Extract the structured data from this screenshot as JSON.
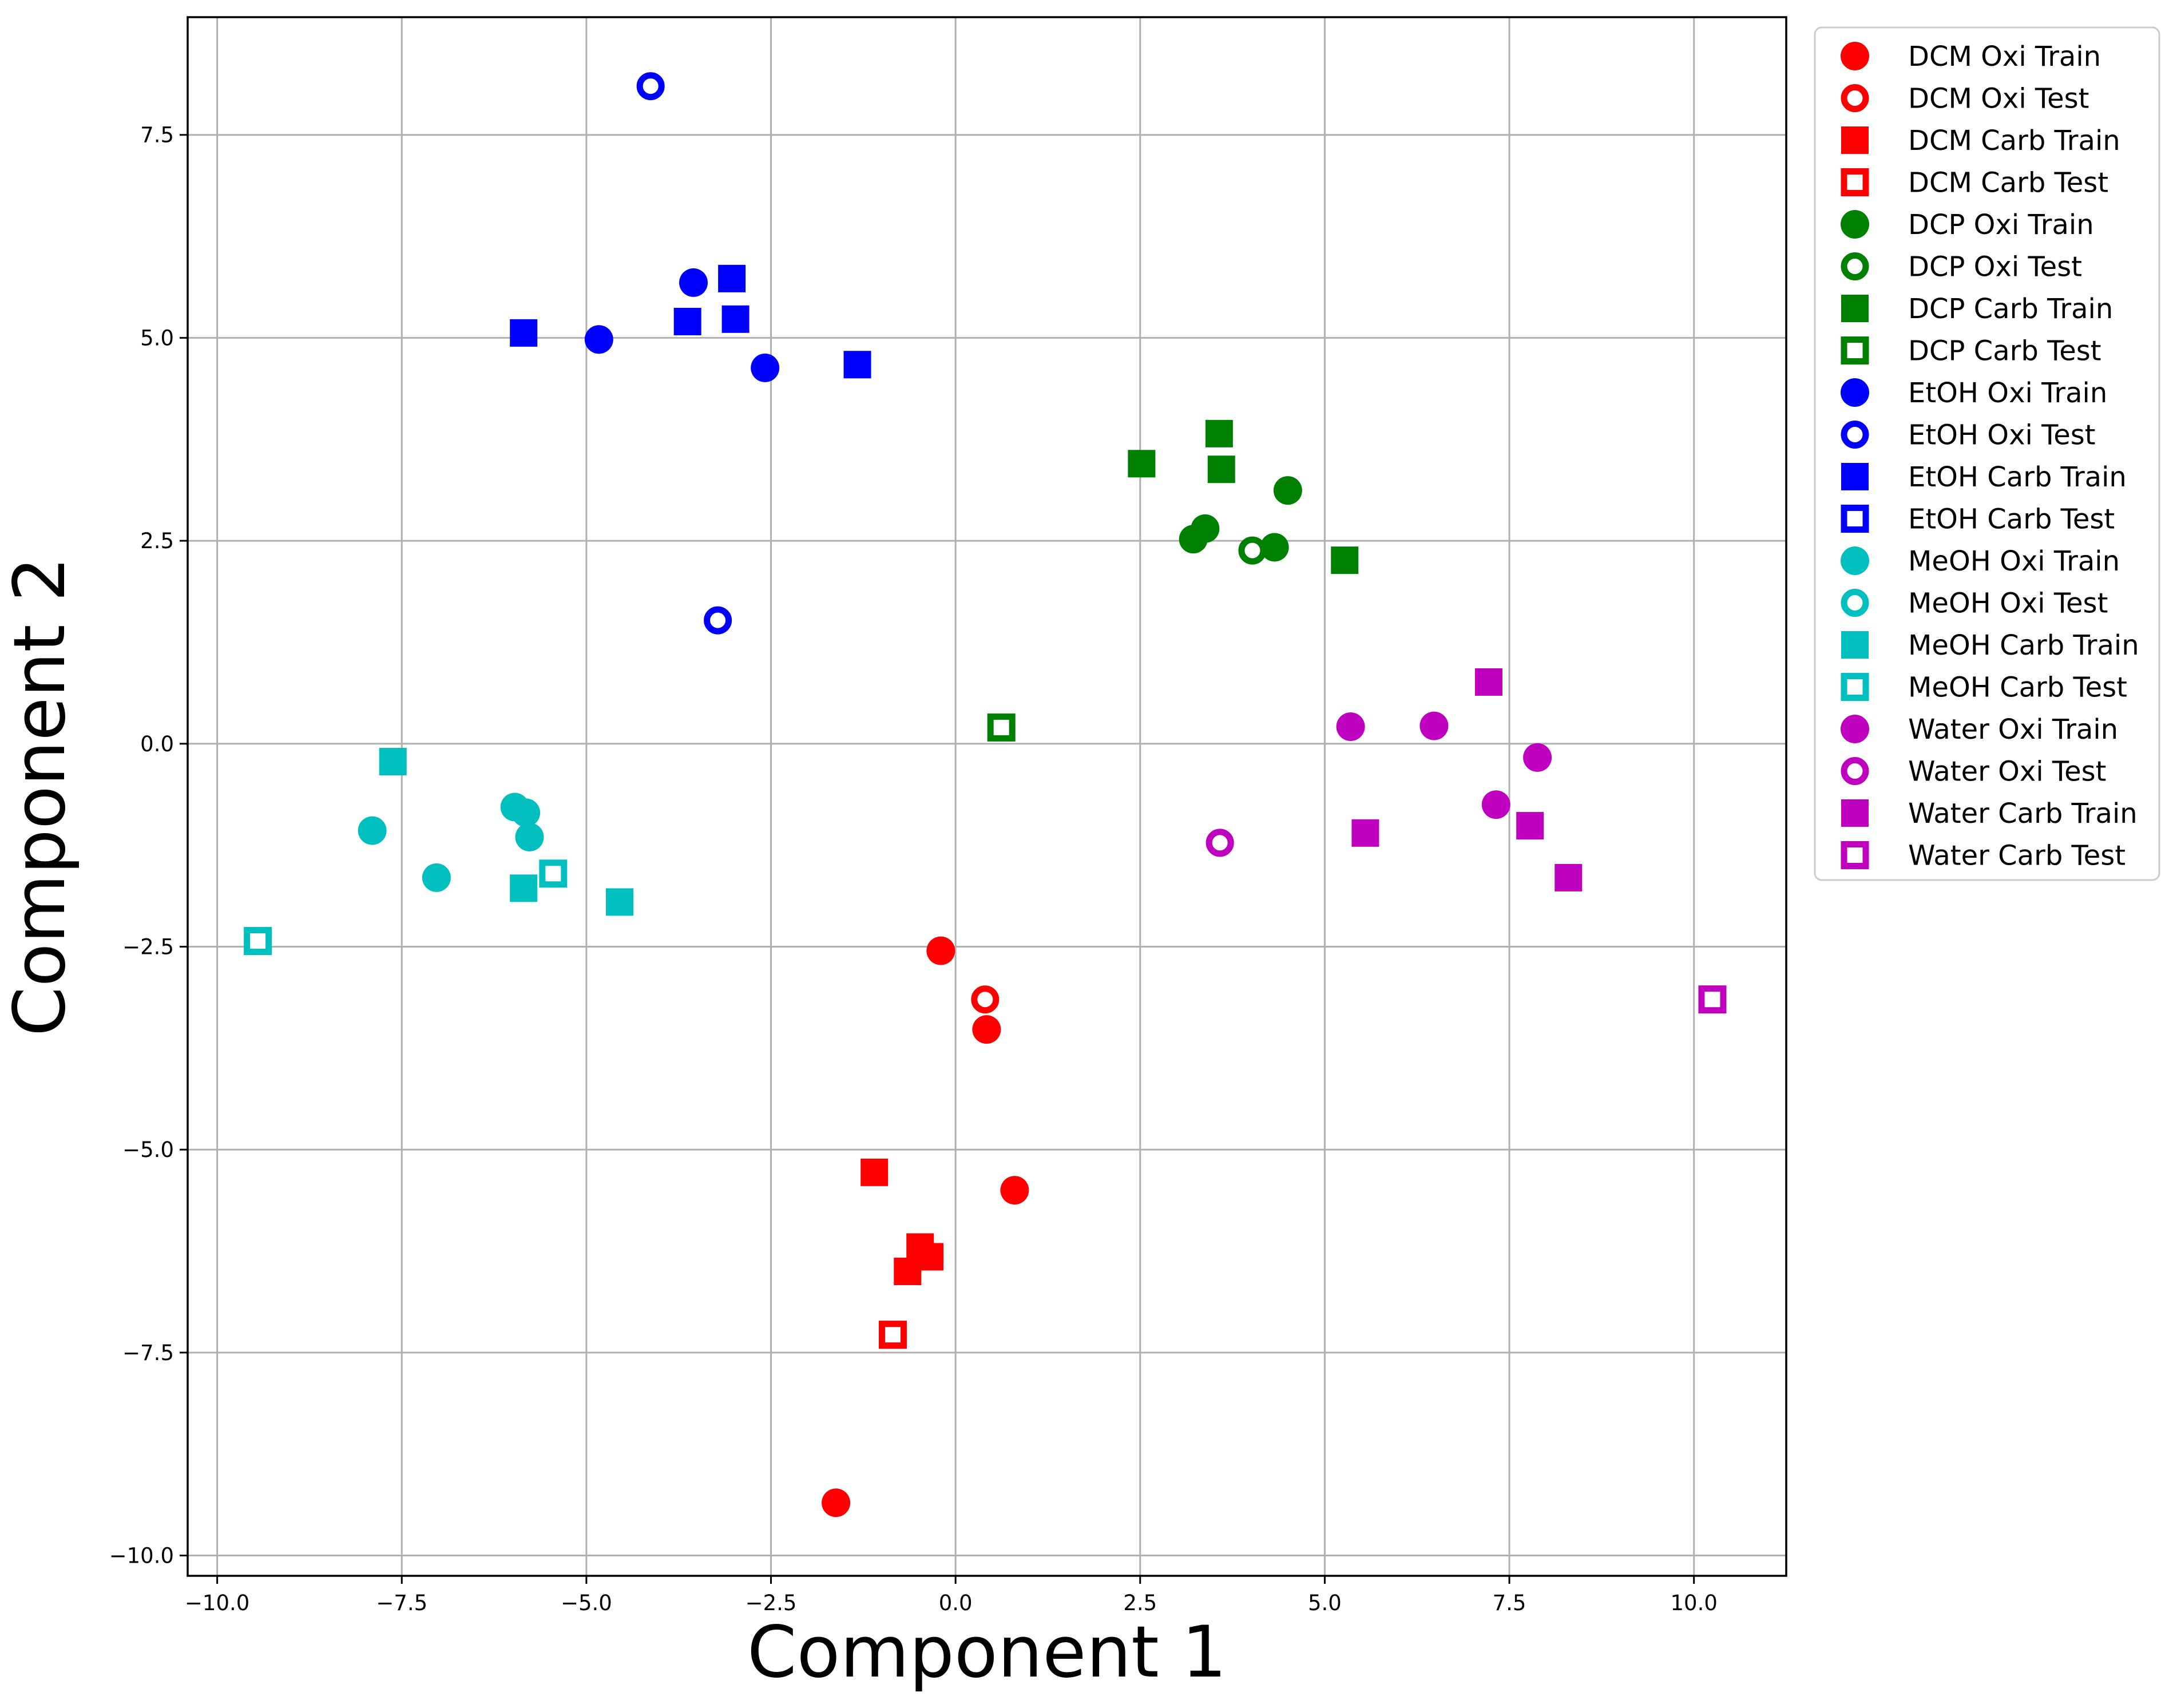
{
  "chart_data": {
    "type": "scatter",
    "title": "",
    "xlabel": "Component 1",
    "ylabel": "Component 2",
    "xlim": [
      -10.4,
      11.25
    ],
    "ylim": [
      -10.25,
      8.95
    ],
    "xticks": [
      -10.0,
      -7.5,
      -5.0,
      -2.5,
      0.0,
      2.5,
      5.0,
      7.5,
      10.0
    ],
    "xtick_labels": [
      "−10.0",
      "−7.5",
      "−5.0",
      "−2.5",
      "0.0",
      "2.5",
      "5.0",
      "7.5",
      "10.0"
    ],
    "yticks": [
      -10.0,
      -7.5,
      -5.0,
      -2.5,
      0.0,
      2.5,
      5.0,
      7.5
    ],
    "ytick_labels": [
      "−10.0",
      "−7.5",
      "−5.0",
      "−2.5",
      "0.0",
      "2.5",
      "5.0",
      "7.5"
    ],
    "grid": true,
    "legend_position": "outside-right-top",
    "series": [
      {
        "name": "DCM Oxi Train",
        "color": "#ff0000",
        "marker": "circle",
        "filled": true,
        "points": [
          [
            -0.2,
            -2.55
          ],
          [
            0.42,
            -3.52
          ],
          [
            0.8,
            -5.5
          ],
          [
            -1.62,
            -9.35
          ]
        ]
      },
      {
        "name": "DCM Oxi Test",
        "color": "#ff0000",
        "marker": "circle",
        "filled": false,
        "points": [
          [
            0.4,
            -3.15
          ]
        ]
      },
      {
        "name": "DCM Carb Train",
        "color": "#ff0000",
        "marker": "square",
        "filled": true,
        "points": [
          [
            -1.1,
            -5.28
          ],
          [
            -0.48,
            -6.2
          ],
          [
            -0.35,
            -6.32
          ],
          [
            -0.65,
            -6.5
          ]
        ]
      },
      {
        "name": "DCM Carb Test",
        "color": "#ff0000",
        "marker": "square",
        "filled": false,
        "points": [
          [
            -0.85,
            -7.28
          ]
        ]
      },
      {
        "name": "DCP Oxi Train",
        "color": "#008000",
        "marker": "circle",
        "filled": true,
        "points": [
          [
            3.22,
            2.52
          ],
          [
            3.38,
            2.65
          ],
          [
            4.32,
            2.42
          ],
          [
            4.5,
            3.12
          ]
        ]
      },
      {
        "name": "DCP Oxi Test",
        "color": "#008000",
        "marker": "circle",
        "filled": false,
        "points": [
          [
            4.02,
            2.38
          ]
        ]
      },
      {
        "name": "DCP Carb Train",
        "color": "#008000",
        "marker": "square",
        "filled": true,
        "points": [
          [
            2.52,
            3.45
          ],
          [
            3.57,
            3.82
          ],
          [
            3.6,
            3.38
          ],
          [
            5.27,
            2.26
          ]
        ]
      },
      {
        "name": "DCP Carb Test",
        "color": "#008000",
        "marker": "square",
        "filled": false,
        "points": [
          [
            0.62,
            0.2
          ]
        ]
      },
      {
        "name": "EtOH Oxi Train",
        "color": "#0000ff",
        "marker": "circle",
        "filled": true,
        "points": [
          [
            -3.55,
            5.68
          ],
          [
            -4.83,
            4.98
          ],
          [
            -2.58,
            4.63
          ]
        ]
      },
      {
        "name": "EtOH Oxi Test",
        "color": "#0000ff",
        "marker": "circle",
        "filled": false,
        "points": [
          [
            -4.13,
            8.1
          ],
          [
            -3.22,
            1.52
          ]
        ]
      },
      {
        "name": "EtOH Carb Train",
        "color": "#0000ff",
        "marker": "square",
        "filled": true,
        "points": [
          [
            -5.85,
            5.06
          ],
          [
            -3.63,
            5.2
          ],
          [
            -3.03,
            5.73
          ],
          [
            -2.98,
            5.23
          ],
          [
            -1.33,
            4.67
          ]
        ]
      },
      {
        "name": "EtOH Carb Test",
        "color": "#0000ff",
        "marker": "square",
        "filled": false,
        "points": []
      },
      {
        "name": "MeOH Oxi Train",
        "color": "#00bfbf",
        "marker": "circle",
        "filled": true,
        "points": [
          [
            -7.9,
            -1.07
          ],
          [
            -7.03,
            -1.65
          ],
          [
            -5.97,
            -0.78
          ],
          [
            -5.82,
            -0.85
          ],
          [
            -5.77,
            -1.15
          ]
        ]
      },
      {
        "name": "MeOH Oxi Test",
        "color": "#00bfbf",
        "marker": "circle",
        "filled": false,
        "points": []
      },
      {
        "name": "MeOH Carb Train",
        "color": "#00bfbf",
        "marker": "square",
        "filled": true,
        "points": [
          [
            -7.62,
            -0.22
          ],
          [
            -5.85,
            -1.78
          ],
          [
            -4.55,
            -1.95
          ]
        ]
      },
      {
        "name": "MeOH Carb Test",
        "color": "#00bfbf",
        "marker": "square",
        "filled": false,
        "points": [
          [
            -9.45,
            -2.43
          ],
          [
            -5.45,
            -1.6
          ]
        ]
      },
      {
        "name": "Water Oxi Train",
        "color": "#bf00bf",
        "marker": "circle",
        "filled": true,
        "points": [
          [
            5.35,
            0.21
          ],
          [
            6.48,
            0.22
          ],
          [
            7.88,
            -0.17
          ],
          [
            7.32,
            -0.75
          ]
        ]
      },
      {
        "name": "Water Oxi Test",
        "color": "#bf00bf",
        "marker": "circle",
        "filled": false,
        "points": [
          [
            3.58,
            -1.22
          ]
        ]
      },
      {
        "name": "Water Carb Train",
        "color": "#bf00bf",
        "marker": "square",
        "filled": true,
        "points": [
          [
            7.22,
            0.76
          ],
          [
            5.55,
            -1.1
          ],
          [
            7.78,
            -1.01
          ],
          [
            8.3,
            -1.65
          ]
        ]
      },
      {
        "name": "Water Carb Test",
        "color": "#bf00bf",
        "marker": "square",
        "filled": false,
        "points": [
          [
            10.25,
            -3.15
          ]
        ]
      }
    ]
  }
}
